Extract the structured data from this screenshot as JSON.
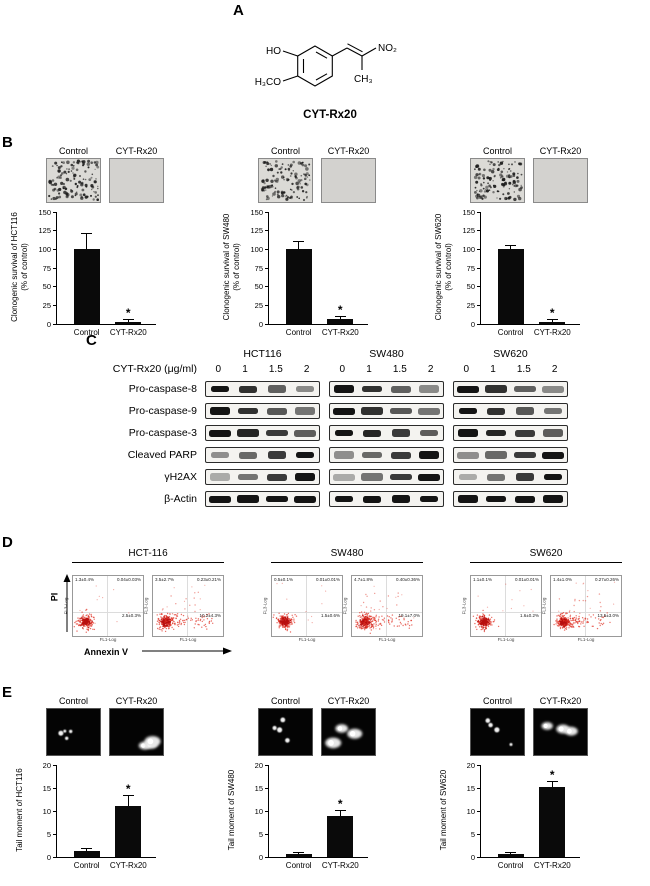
{
  "panel_a": {
    "label": "A",
    "compound": "CYT-Rx20",
    "groups": {
      "ho": "HO",
      "h3co": "H₃CO",
      "no2": "NO₂",
      "ch3": "CH₃"
    }
  },
  "panel_b": {
    "label": "B",
    "image_labels": [
      "Control",
      "CYT-Rx20"
    ]
  },
  "panel_c": {
    "label": "C",
    "dose_label": "CYT-Rx20 (μg/ml)",
    "doses": [
      "0",
      "1",
      "1.5",
      "2"
    ],
    "cell_lines": [
      "HCT116",
      "SW480",
      "SW620"
    ],
    "rows": [
      {
        "protein": "Pro-caspase-8",
        "pattern": [
          1,
          0.85,
          0.6,
          0.38
        ]
      },
      {
        "protein": "Pro-caspase-9",
        "pattern": [
          1,
          0.85,
          0.65,
          0.5
        ]
      },
      {
        "protein": "Pro-caspase-3",
        "pattern": [
          1,
          0.92,
          0.8,
          0.62
        ]
      },
      {
        "protein": "Cleaved PARP",
        "pattern": [
          0.35,
          0.55,
          0.8,
          1
        ]
      },
      {
        "protein": "γH2AX",
        "pattern": [
          0.2,
          0.5,
          0.8,
          1
        ]
      },
      {
        "protein": "β-Actin",
        "pattern": [
          1,
          1,
          1,
          1
        ]
      }
    ]
  },
  "panel_d": {
    "label": "D",
    "x_axis": "Annexin V",
    "y_axis": "PI",
    "plot_x_label": "FL1-Log",
    "plot_y_label": "FL3-Log",
    "cell_lines": [
      "HCT-116",
      "SW480",
      "SW620"
    ],
    "plots": [
      {
        "cell": "HCT-116",
        "ul": "1.3±0.4%",
        "ur": "0.04±0.03%",
        "lr": "2.5±0.3%",
        "population": "compact"
      },
      {
        "cell": "HCT-116",
        "ul": "3.5±2.7%",
        "ur": "0.23±0.21%",
        "lr": "10.2±4.3%",
        "population": "spread"
      },
      {
        "cell": "SW480",
        "ul": "0.5±0.1%",
        "ur": "0.01±0.01%",
        "lr": "1.5±0.6%",
        "population": "compact"
      },
      {
        "cell": "SW480",
        "ul": "4.7±1.8%",
        "ur": "0.40±0.36%",
        "lr": "19.1±7.0%",
        "population": "spread"
      },
      {
        "cell": "SW620",
        "ul": "1.1±0.1%",
        "ur": "0.01±0.01%",
        "lr": "1.6±0.2%",
        "population": "compact"
      },
      {
        "cell": "SW620",
        "ul": "1.4±1.0%",
        "ur": "0.27±0.26%",
        "lr": "13.5±3.0%",
        "population": "spread"
      }
    ]
  },
  "panel_e": {
    "label": "E",
    "image_labels": [
      "Control",
      "CYT-Rx20"
    ]
  },
  "chart_data": [
    {
      "type": "bar",
      "panel": "B",
      "categories": [
        "Control",
        "CYT-Rx20"
      ],
      "values": [
        100,
        3
      ],
      "errors": [
        20,
        2
      ],
      "sig": [
        "",
        "*"
      ],
      "ylabel": "Clonogenic survival of HCT116",
      "ylabel2": "(% of control)",
      "ylim": [
        0,
        150
      ],
      "yticks": [
        0,
        25,
        50,
        75,
        100,
        125,
        150
      ]
    },
    {
      "type": "bar",
      "panel": "B",
      "categories": [
        "Control",
        "CYT-Rx20"
      ],
      "values": [
        100,
        7
      ],
      "errors": [
        10,
        3
      ],
      "sig": [
        "",
        "*"
      ],
      "ylabel": "Clonogenic survival of SW480",
      "ylabel2": "(% of control)",
      "ylim": [
        0,
        150
      ],
      "yticks": [
        0,
        25,
        50,
        75,
        100,
        125,
        150
      ]
    },
    {
      "type": "bar",
      "panel": "B",
      "categories": [
        "Control",
        "CYT-Rx20"
      ],
      "values": [
        100,
        3
      ],
      "errors": [
        5,
        2
      ],
      "sig": [
        "",
        "*"
      ],
      "ylabel": "Clonogenic survival of SW620",
      "ylabel2": "(% of control)",
      "ylim": [
        0,
        150
      ],
      "yticks": [
        0,
        25,
        50,
        75,
        100,
        125,
        150
      ]
    },
    {
      "type": "bar",
      "panel": "E",
      "categories": [
        "Control",
        "CYT-Rx20"
      ],
      "values": [
        1.2,
        11
      ],
      "errors": [
        0.6,
        2.2
      ],
      "sig": [
        "",
        "*"
      ],
      "ylabel": "Tail moment of HCT116",
      "ylim": [
        0,
        20
      ],
      "yticks": [
        0,
        5,
        10,
        15,
        20
      ]
    },
    {
      "type": "bar",
      "panel": "E",
      "categories": [
        "Control",
        "CYT-Rx20"
      ],
      "values": [
        0.6,
        9
      ],
      "errors": [
        0.3,
        1
      ],
      "sig": [
        "",
        "*"
      ],
      "ylabel": "Tail moment of SW480",
      "ylim": [
        0,
        20
      ],
      "yticks": [
        0,
        5,
        10,
        15,
        20
      ]
    },
    {
      "type": "bar",
      "panel": "E",
      "categories": [
        "Control",
        "CYT-Rx20"
      ],
      "values": [
        0.6,
        15.2
      ],
      "errors": [
        0.3,
        1.2
      ],
      "sig": [
        "",
        "*"
      ],
      "ylabel": "Tail moment of SW620",
      "ylim": [
        0,
        20
      ],
      "yticks": [
        0,
        5,
        10,
        15,
        20
      ]
    }
  ]
}
